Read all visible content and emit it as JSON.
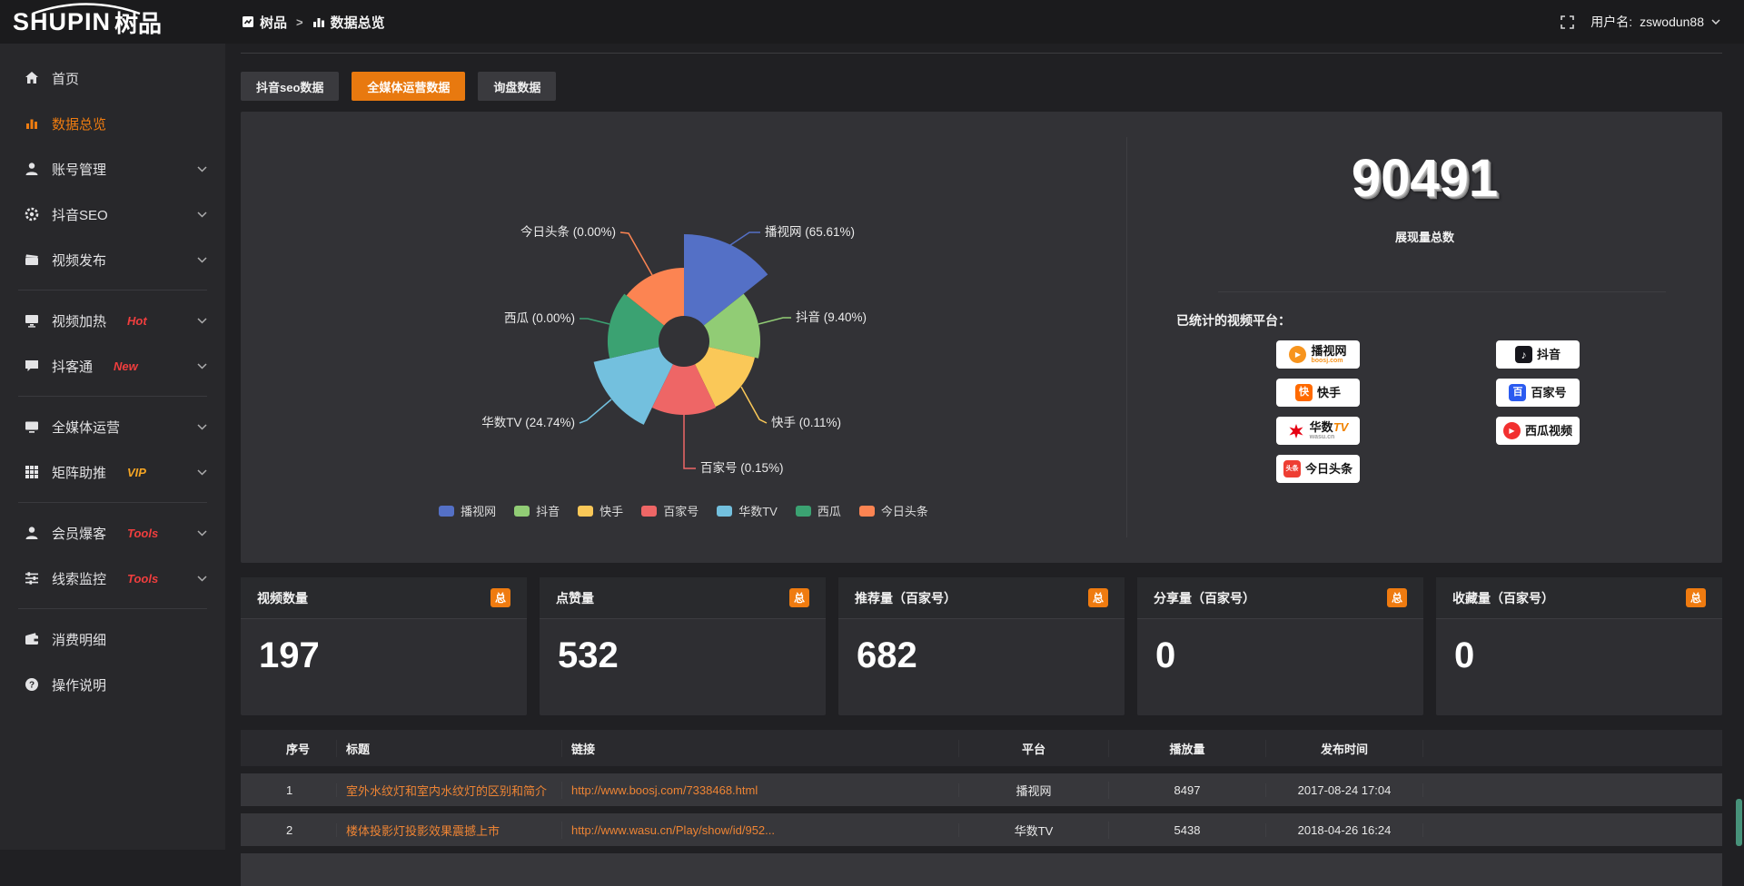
{
  "header": {
    "logo_en": "SHUPIN",
    "logo_cn": "树品",
    "breadcrumb": [
      {
        "label": "树品",
        "icon": "chart-square-icon"
      },
      {
        "label": "数据总览",
        "icon": "bar-chart-icon"
      }
    ],
    "username_label": "用户名:",
    "username": "zswodun88"
  },
  "sidebar": {
    "items": [
      {
        "label": "首页",
        "icon": "home"
      },
      {
        "label": "数据总览",
        "icon": "bar",
        "active": true
      },
      {
        "label": "账号管理",
        "icon": "user",
        "chevron": true
      },
      {
        "label": "抖音SEO",
        "icon": "gear",
        "chevron": true
      },
      {
        "label": "视频发布",
        "icon": "clapper",
        "chevron": true
      },
      {
        "divider": true
      },
      {
        "label": "视频加热",
        "icon": "heat",
        "badge": "Hot",
        "badge_color": "#f03e3e",
        "chevron": true
      },
      {
        "label": "抖客通",
        "icon": "chat",
        "badge": "New",
        "badge_color": "#f03e3e",
        "chevron": true
      },
      {
        "divider": true
      },
      {
        "label": "全媒体运营",
        "icon": "monitor",
        "chevron": true
      },
      {
        "label": "矩阵助推",
        "icon": "grid",
        "badge": "VIP",
        "badge_color": "#f5a524",
        "chevron": true
      },
      {
        "divider": true
      },
      {
        "label": "会员爆客",
        "icon": "person",
        "badge": "Tools",
        "badge_color": "#f03e3e",
        "chevron": true
      },
      {
        "label": "线索监控",
        "icon": "sliders",
        "badge": "Tools",
        "badge_color": "#f03e3e",
        "chevron": true
      },
      {
        "divider": true
      },
      {
        "label": "消费明细",
        "icon": "wallet"
      },
      {
        "label": "操作说明",
        "icon": "question"
      }
    ]
  },
  "tabs": [
    {
      "label": "抖音seo数据",
      "active": false
    },
    {
      "label": "全媒体运营数据",
      "active": true
    },
    {
      "label": "询盘数据",
      "active": false
    }
  ],
  "chart_data": {
    "type": "pie",
    "variant": "nightingale-rose",
    "categories": [
      "播视网",
      "抖音",
      "快手",
      "百家号",
      "华数TV",
      "西瓜",
      "今日头条"
    ],
    "values_pct": [
      65.61,
      9.4,
      0.11,
      0.15,
      24.74,
      0.0,
      0.0
    ],
    "colors": [
      "#5470c6",
      "#91cc75",
      "#fac858",
      "#ee6666",
      "#73c0de",
      "#3ba272",
      "#fc8452"
    ],
    "legend": [
      "播视网",
      "抖音",
      "快手",
      "百家号",
      "华数TV",
      "西瓜",
      "今日头条"
    ],
    "legend_position": "bottom",
    "title": ""
  },
  "summary": {
    "total_value": "90491",
    "total_label": "展现量总数",
    "platforms_label": "已统计的视频平台：",
    "platform_columns": [
      [
        {
          "name": "播视网",
          "sub": "boosj.com",
          "sub_color": "#f7941d",
          "logo": "boosj"
        },
        {
          "name": "快手",
          "logo": "kuaishou"
        },
        {
          "name": "华数TV",
          "sub": "wasu.cn",
          "sub_color": "#9a9a9a",
          "logo": "wasu"
        },
        {
          "name": "今日头条",
          "logo": "toutiao"
        }
      ],
      [
        {
          "name": "抖音",
          "logo": "douyin"
        },
        {
          "name": "百家号",
          "logo": "baijia"
        },
        {
          "name": "西瓜视频",
          "logo": "xigua"
        }
      ]
    ]
  },
  "stat_cards": [
    {
      "title": "视频数量",
      "badge": "总",
      "value": "197"
    },
    {
      "title": "点赞量",
      "badge": "总",
      "value": "532"
    },
    {
      "title": "推荐量（百家号）",
      "badge": "总",
      "value": "682"
    },
    {
      "title": "分享量（百家号）",
      "badge": "总",
      "value": "0"
    },
    {
      "title": "收藏量（百家号）",
      "badge": "总",
      "value": "0"
    }
  ],
  "table": {
    "headers": [
      "序号",
      "标题",
      "链接",
      "平台",
      "播放量",
      "发布时间"
    ],
    "rows": [
      {
        "index": "1",
        "title": "室外水纹灯和室内水纹灯的区别和简介",
        "link": "http://www.boosj.com/7338468.html",
        "platform": "播视网",
        "plays": "8497",
        "published": "2017-08-24 17:04"
      },
      {
        "index": "2",
        "title": "楼体投影灯投影效果震撼上市",
        "link": "http://www.wasu.cn/Play/show/id/952...",
        "platform": "华数TV",
        "plays": "5438",
        "published": "2018-04-26 16:24"
      }
    ]
  }
}
